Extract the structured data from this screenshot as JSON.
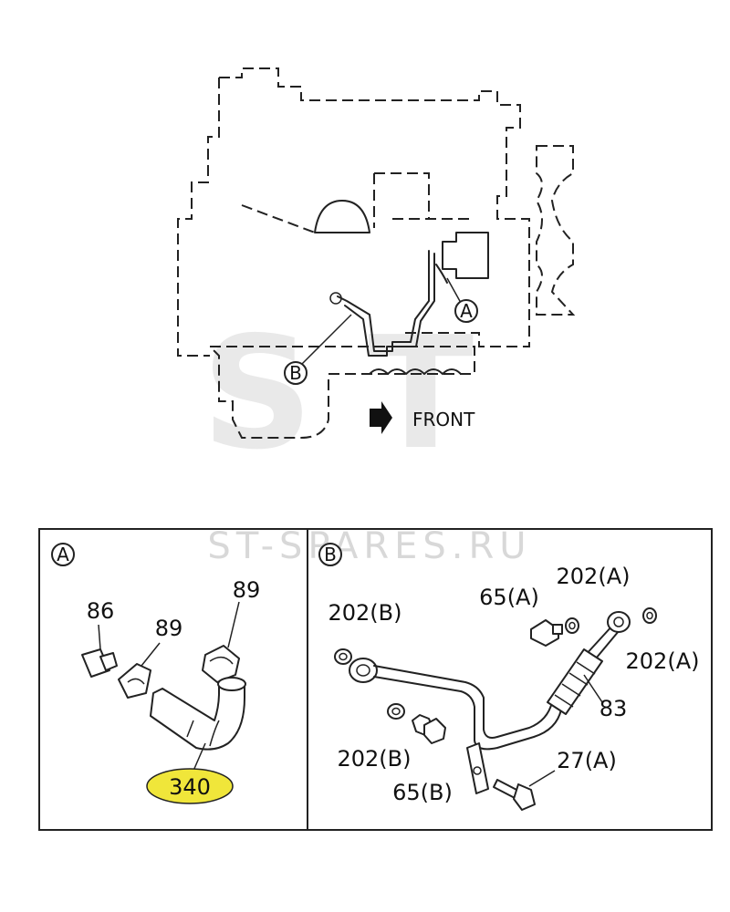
{
  "watermark": {
    "logo_text": "ST",
    "site": "ST-SPARES.RU"
  },
  "overview": {
    "front_label": "FRONT",
    "callout_a": "A",
    "callout_b": "B"
  },
  "detail_a": {
    "panel_letter": "A",
    "parts": {
      "p86": "86",
      "p89_top": "89",
      "p89_mid": "89",
      "p340": "340"
    },
    "highlight_color": "#f0e63a"
  },
  "detail_b": {
    "panel_letter": "B",
    "parts": {
      "p202b_top": "202(B)",
      "p65a": "65(A)",
      "p202a_top": "202(A)",
      "p202a_right": "202(A)",
      "p83": "83",
      "p202b_bottom": "202(B)",
      "p27a": "27(A)",
      "p65b": "65(B)"
    }
  }
}
